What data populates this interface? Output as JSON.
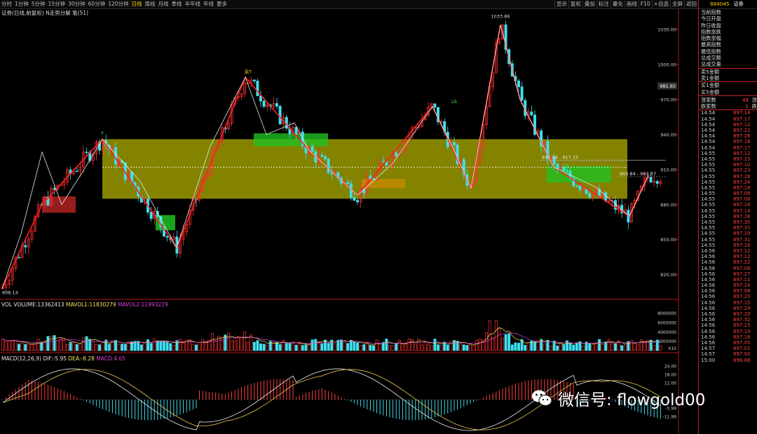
{
  "toolbar": {
    "periods": [
      "分时",
      "1分钟",
      "5分钟",
      "15分钟",
      "30分钟",
      "60分钟",
      "120分钟",
      "日线",
      "周线",
      "月线",
      "季线",
      "半年线",
      "年线",
      "更多"
    ],
    "active_index": 7,
    "right_items": [
      "显示",
      "复权",
      "叠加",
      "标注",
      "量化",
      "画线",
      "F10",
      "+自选",
      "全屏",
      "返回"
    ]
  },
  "chart": {
    "title": "证券(日线,前复权) N走势分解 笔(51)",
    "annotations": {
      "high": "1033.86",
      "low": "808.14",
      "sell": "卖T",
      "buy1": "T",
      "buy2": "LS",
      "range1": "917.98 - 917.15",
      "range2": "903.84 - 903.37",
      "price_tag": "981.65"
    },
    "y_ticks": [
      "1030.00",
      "1000.00",
      "970.00",
      "940.00",
      "910.00",
      "880.00",
      "850.00",
      "820.00"
    ]
  },
  "volume": {
    "label": "VOL VOLUME:13362413",
    "mavol1": "MAVOL1:11830279",
    "mavol2": "MAVOL2:11993229",
    "y_ticks": [
      "8000000",
      "6000000",
      "4000000",
      "2000000"
    ],
    "unit": "X10"
  },
  "macd": {
    "label": "MACD(12,26,9) DIF:-5.95",
    "dea": "DEA:-8.28",
    "macd": "MACD:4.65",
    "y_ticks": [
      "24.00",
      "18.00",
      "12.00",
      "-5.99",
      "-11.99"
    ]
  },
  "side": {
    "code": "884045",
    "name": "证券",
    "items1": [
      "当前指数",
      "今日开盘",
      "昨日收盘",
      "指数涨跌",
      "指数涨幅",
      "最高指数",
      "最低指数",
      "总成交额",
      "总成交量"
    ],
    "items2": [
      "卖5金额",
      "卖1金额"
    ],
    "items3": [
      "买1金额",
      "买5金额"
    ],
    "stats": [
      {
        "label": "涨家数",
        "value": "49",
        "unit": "涨"
      },
      {
        "label": "跌家数",
        "value": "1",
        "unit": "跌"
      }
    ],
    "ticks": [
      {
        "t": "14:54",
        "p": "897.14"
      },
      {
        "t": "14:54",
        "p": "897.17"
      },
      {
        "t": "14:54",
        "p": "897.12"
      },
      {
        "t": "14:54",
        "p": "897.22"
      },
      {
        "t": "14:54",
        "p": "897.26"
      },
      {
        "t": "14:54",
        "p": "897.18"
      },
      {
        "t": "14:54",
        "p": "897.17"
      },
      {
        "t": "14:55",
        "p": "897.12"
      },
      {
        "t": "14:55",
        "p": "897.23"
      },
      {
        "t": "14:55",
        "p": "897.10"
      },
      {
        "t": "14:55",
        "p": "897.23"
      },
      {
        "t": "14:55",
        "p": "897.28"
      },
      {
        "t": "14:55",
        "p": "897.24"
      },
      {
        "t": "14:55",
        "p": "897.18"
      },
      {
        "t": "14:55",
        "p": "897.09"
      },
      {
        "t": "14:55",
        "p": "897.08"
      },
      {
        "t": "14:55",
        "p": "897.16"
      },
      {
        "t": "14:55",
        "p": "897.14"
      },
      {
        "t": "14:55",
        "p": "897.26"
      },
      {
        "t": "14:55",
        "p": "897.35"
      },
      {
        "t": "14:55",
        "p": "897.31"
      },
      {
        "t": "14:55",
        "p": "897.29"
      },
      {
        "t": "14:55",
        "p": "897.31"
      },
      {
        "t": "14:55",
        "p": "897.16"
      },
      {
        "t": "14:56",
        "p": "897.12"
      },
      {
        "t": "14:56",
        "p": "897.12"
      },
      {
        "t": "14:56",
        "p": "897.22"
      },
      {
        "t": "14:56",
        "p": "897.08"
      },
      {
        "t": "14:56",
        "p": "897.27"
      },
      {
        "t": "14:56",
        "p": "897.11"
      },
      {
        "t": "14:56",
        "p": "897.24"
      },
      {
        "t": "14:56",
        "p": "897.08"
      },
      {
        "t": "14:56",
        "p": "897.20"
      },
      {
        "t": "14:56",
        "p": "897.15"
      },
      {
        "t": "14:56",
        "p": "897.29"
      },
      {
        "t": "14:56",
        "p": "897.20"
      },
      {
        "t": "14:56",
        "p": "897.32"
      },
      {
        "t": "14:56",
        "p": "897.15"
      },
      {
        "t": "14:56",
        "p": "897.19"
      },
      {
        "t": "14:56",
        "p": "897.18"
      },
      {
        "t": "14:56",
        "p": "897.05"
      },
      {
        "t": "14:57",
        "p": "897.01"
      },
      {
        "t": "14:57",
        "p": "897.00"
      },
      {
        "t": "15:00",
        "p": "896.88"
      }
    ]
  },
  "watermark": {
    "text": "微信号: flowgold00"
  },
  "colors": {
    "up": "#ff3030",
    "down": "#3ee0f0",
    "bi": "#ff2020",
    "zone": "#a8a800",
    "zone_green": "#20c020",
    "side_border": "#c02020"
  }
}
